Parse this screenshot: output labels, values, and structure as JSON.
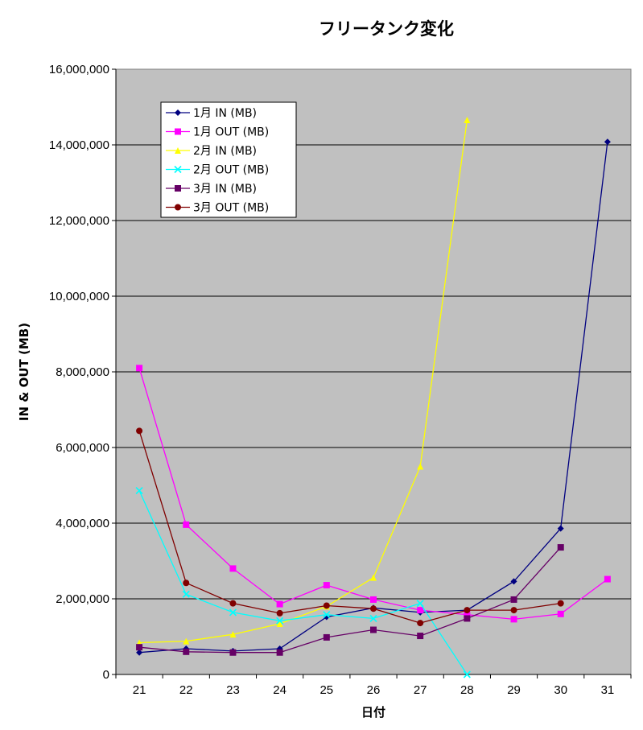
{
  "chart_data": {
    "type": "line",
    "title": "フリータンク変化",
    "xlabel": "日付",
    "ylabel": "IN & OUT (MB)",
    "x": [
      "21",
      "22",
      "23",
      "24",
      "25",
      "26",
      "27",
      "28",
      "29",
      "30",
      "31"
    ],
    "ylim": [
      0,
      16000000
    ],
    "yticks": [
      0,
      2000000,
      4000000,
      6000000,
      8000000,
      10000000,
      12000000,
      14000000,
      16000000
    ],
    "ytick_labels": [
      "0",
      "2,000,000",
      "4,000,000",
      "6,000,000",
      "8,000,000",
      "10,000,000",
      "12,000,000",
      "14,000,000",
      "16,000,000"
    ],
    "grid": "horizontal",
    "legend_position": "top-left inside",
    "plot_background": "#c0c0c0",
    "series": [
      {
        "name": "1月 IN (MB)",
        "color": "#000080",
        "marker": "diamond",
        "values": [
          580000,
          680000,
          620000,
          680000,
          1520000,
          1760000,
          1640000,
          1700000,
          2460000,
          3860000,
          14080000
        ]
      },
      {
        "name": "1月 OUT (MB)",
        "color": "#ff00ff",
        "marker": "square",
        "values": [
          8100000,
          3960000,
          2800000,
          1860000,
          2360000,
          1980000,
          1700000,
          1580000,
          1460000,
          1600000,
          2520000
        ]
      },
      {
        "name": "2月 IN (MB)",
        "color": "#ffff00",
        "marker": "triangle",
        "values": [
          840000,
          880000,
          1060000,
          1340000,
          1800000,
          2560000,
          5500000,
          14660000,
          null,
          null,
          null
        ]
      },
      {
        "name": "2月 OUT (MB)",
        "color": "#00ffff",
        "marker": "x",
        "values": [
          4860000,
          2120000,
          1640000,
          1420000,
          1580000,
          1480000,
          1880000,
          0,
          null,
          null,
          null
        ]
      },
      {
        "name": "3月 IN (MB)",
        "color": "#660066",
        "marker": "square",
        "values": [
          720000,
          600000,
          580000,
          580000,
          980000,
          1180000,
          1020000,
          1480000,
          1980000,
          3360000,
          null
        ]
      },
      {
        "name": "3月 OUT (MB)",
        "color": "#800000",
        "marker": "circle",
        "values": [
          6440000,
          2420000,
          1880000,
          1620000,
          1820000,
          1740000,
          1360000,
          1700000,
          1700000,
          1880000,
          null
        ]
      }
    ]
  }
}
